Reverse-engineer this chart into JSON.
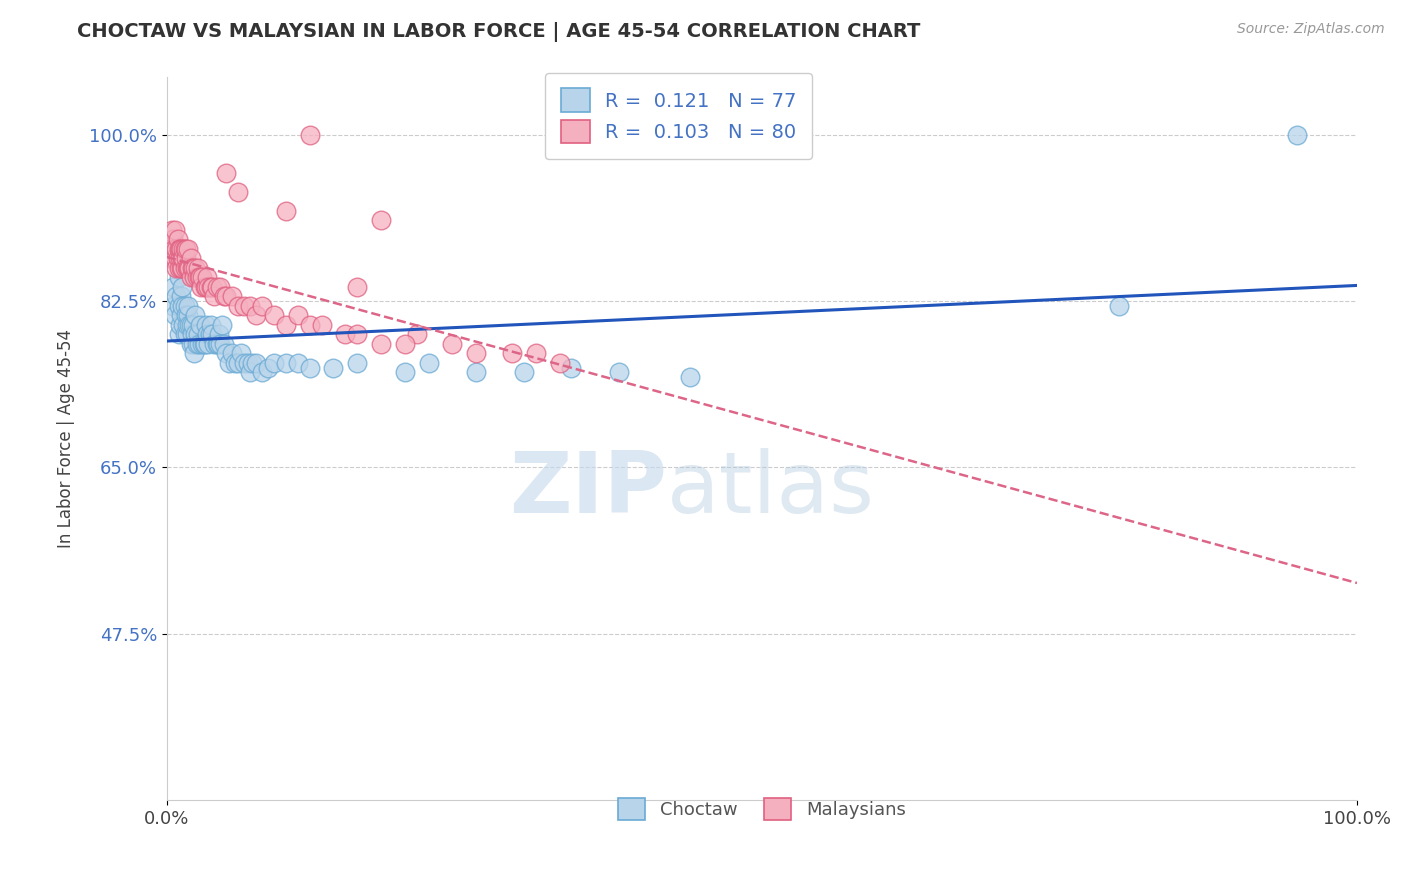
{
  "title": "CHOCTAW VS MALAYSIAN IN LABOR FORCE | AGE 45-54 CORRELATION CHART",
  "source_text": "Source: ZipAtlas.com",
  "ylabel": "In Labor Force | Age 45-54",
  "xlim": [
    0.0,
    1.0
  ],
  "ylim": [
    0.3,
    1.06
  ],
  "yticks": [
    0.475,
    0.65,
    0.825,
    1.0
  ],
  "ytick_labels": [
    "47.5%",
    "65.0%",
    "82.5%",
    "100.0%"
  ],
  "xtick_labels": [
    "0.0%",
    "100.0%"
  ],
  "xticks": [
    0.0,
    1.0
  ],
  "choctaw_color": "#b8d4ea",
  "malaysian_color": "#f5b0c0",
  "choctaw_edge": "#6aaad4",
  "malaysian_edge": "#e06080",
  "trend_choctaw_color": "#2255bb",
  "trend_malaysian_color": "#dd6688",
  "R_choctaw": 0.121,
  "N_choctaw": 77,
  "R_malaysian": 0.103,
  "N_malaysian": 80,
  "legend_label_choctaw": "Choctaw",
  "legend_label_malaysian": "Malaysians",
  "watermark_zip": "ZIP",
  "watermark_atlas": "atlas",
  "choctaw_x": [
    0.005,
    0.005,
    0.007,
    0.008,
    0.01,
    0.01,
    0.01,
    0.011,
    0.012,
    0.012,
    0.013,
    0.013,
    0.014,
    0.015,
    0.015,
    0.016,
    0.017,
    0.017,
    0.018,
    0.018,
    0.019,
    0.02,
    0.02,
    0.021,
    0.022,
    0.022,
    0.023,
    0.024,
    0.024,
    0.025,
    0.026,
    0.027,
    0.028,
    0.03,
    0.031,
    0.032,
    0.033,
    0.034,
    0.035,
    0.036,
    0.037,
    0.038,
    0.04,
    0.042,
    0.043,
    0.044,
    0.045,
    0.046,
    0.048,
    0.05,
    0.052,
    0.055,
    0.057,
    0.06,
    0.062,
    0.065,
    0.068,
    0.07,
    0.072,
    0.075,
    0.08,
    0.085,
    0.09,
    0.1,
    0.11,
    0.12,
    0.14,
    0.16,
    0.2,
    0.22,
    0.26,
    0.3,
    0.34,
    0.38,
    0.44,
    0.8,
    0.95
  ],
  "choctaw_y": [
    0.82,
    0.84,
    0.81,
    0.83,
    0.79,
    0.82,
    0.85,
    0.8,
    0.81,
    0.83,
    0.82,
    0.84,
    0.8,
    0.79,
    0.82,
    0.81,
    0.79,
    0.8,
    0.81,
    0.82,
    0.8,
    0.78,
    0.8,
    0.79,
    0.78,
    0.8,
    0.77,
    0.79,
    0.81,
    0.78,
    0.79,
    0.78,
    0.8,
    0.78,
    0.78,
    0.78,
    0.8,
    0.79,
    0.78,
    0.79,
    0.8,
    0.79,
    0.78,
    0.78,
    0.78,
    0.79,
    0.78,
    0.8,
    0.78,
    0.77,
    0.76,
    0.77,
    0.76,
    0.76,
    0.77,
    0.76,
    0.76,
    0.75,
    0.76,
    0.76,
    0.75,
    0.755,
    0.76,
    0.76,
    0.76,
    0.755,
    0.755,
    0.76,
    0.75,
    0.76,
    0.75,
    0.75,
    0.755,
    0.75,
    0.745,
    0.82,
    1.0
  ],
  "malaysian_x": [
    0.002,
    0.003,
    0.004,
    0.005,
    0.005,
    0.006,
    0.007,
    0.007,
    0.008,
    0.008,
    0.009,
    0.009,
    0.01,
    0.01,
    0.011,
    0.011,
    0.012,
    0.012,
    0.013,
    0.013,
    0.014,
    0.014,
    0.015,
    0.015,
    0.016,
    0.016,
    0.017,
    0.018,
    0.018,
    0.019,
    0.02,
    0.02,
    0.021,
    0.022,
    0.023,
    0.024,
    0.025,
    0.026,
    0.027,
    0.028,
    0.029,
    0.03,
    0.032,
    0.033,
    0.034,
    0.035,
    0.037,
    0.038,
    0.04,
    0.042,
    0.045,
    0.048,
    0.05,
    0.055,
    0.06,
    0.065,
    0.07,
    0.075,
    0.08,
    0.09,
    0.1,
    0.11,
    0.12,
    0.13,
    0.15,
    0.16,
    0.18,
    0.21,
    0.24,
    0.26,
    0.29,
    0.31,
    0.33,
    0.16,
    0.18,
    0.2,
    0.05,
    0.06,
    0.1,
    0.12
  ],
  "malaysian_y": [
    0.87,
    0.88,
    0.9,
    0.87,
    0.89,
    0.88,
    0.87,
    0.9,
    0.86,
    0.88,
    0.87,
    0.89,
    0.86,
    0.88,
    0.87,
    0.88,
    0.86,
    0.88,
    0.86,
    0.87,
    0.87,
    0.88,
    0.86,
    0.88,
    0.87,
    0.88,
    0.86,
    0.86,
    0.88,
    0.86,
    0.85,
    0.87,
    0.86,
    0.86,
    0.85,
    0.86,
    0.85,
    0.86,
    0.85,
    0.85,
    0.84,
    0.85,
    0.84,
    0.84,
    0.85,
    0.84,
    0.84,
    0.84,
    0.83,
    0.84,
    0.84,
    0.83,
    0.83,
    0.83,
    0.82,
    0.82,
    0.82,
    0.81,
    0.82,
    0.81,
    0.8,
    0.81,
    0.8,
    0.8,
    0.79,
    0.79,
    0.78,
    0.79,
    0.78,
    0.77,
    0.77,
    0.77,
    0.76,
    0.84,
    0.91,
    0.78,
    0.96,
    0.94,
    0.92,
    1.0
  ]
}
